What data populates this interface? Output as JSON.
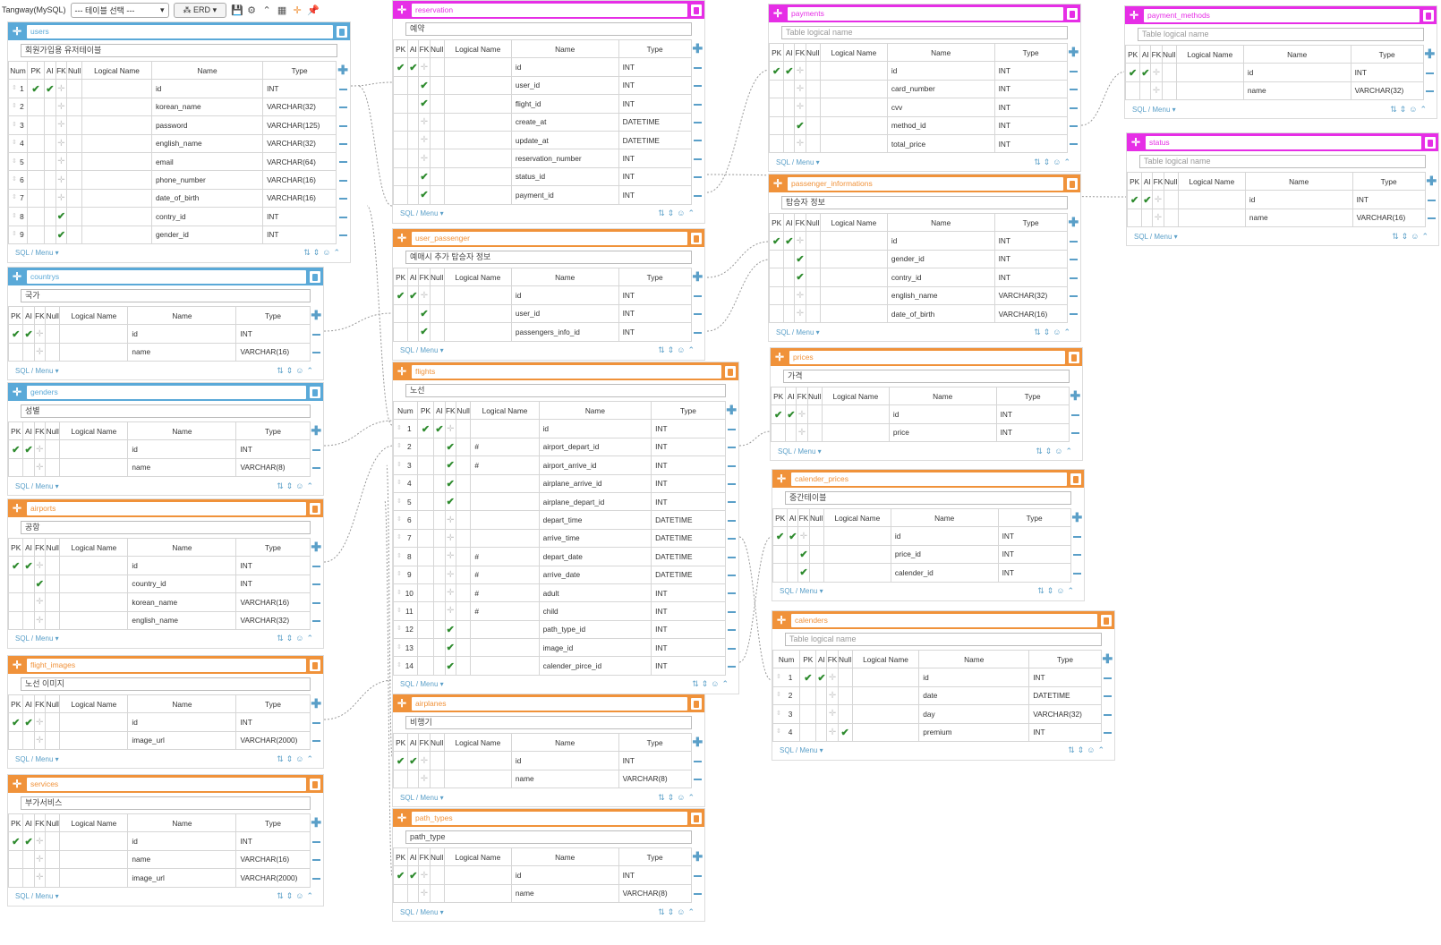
{
  "toolbar": {
    "db_label": "Tangway(MySQL)",
    "table_select": "--- 테이블 선택 ---",
    "erd_label": "ERD",
    "icons": [
      "save-icon",
      "gear-icon",
      "collapse-icon",
      "grid-icon",
      "add-icon",
      "pin-icon"
    ]
  },
  "columns": {
    "num": "Num",
    "pk": "PK",
    "ai": "AI",
    "fk": "FK",
    "null": "Null",
    "logical": "Logical Name",
    "name": "Name",
    "type": "Type"
  },
  "footer": {
    "menu": "SQL / Menu"
  },
  "colors": {
    "blue": "#5aa9d8",
    "orange": "#f0923a",
    "magenta": "#e62ee6",
    "check": "#2e8b2e"
  },
  "tables": [
    {
      "name": "users",
      "color": "blue",
      "logical": "회원가입용 유저테이블",
      "placeholder": false,
      "numbered": true,
      "rows": [
        {
          "num": "1",
          "pk": true,
          "ai": true,
          "fk": false,
          "name": "id",
          "type": "INT"
        },
        {
          "num": "2",
          "name": "korean_name",
          "type": "VARCHAR(32)"
        },
        {
          "num": "3",
          "name": "password",
          "type": "VARCHAR(125)"
        },
        {
          "num": "4",
          "name": "english_name",
          "type": "VARCHAR(32)"
        },
        {
          "num": "5",
          "name": "email",
          "type": "VARCHAR(64)"
        },
        {
          "num": "6",
          "name": "phone_number",
          "type": "VARCHAR(16)"
        },
        {
          "num": "7",
          "name": "date_of_birth",
          "type": "VARCHAR(16)"
        },
        {
          "num": "8",
          "fk": true,
          "name": "contry_id",
          "type": "INT"
        },
        {
          "num": "9",
          "fk": true,
          "name": "gender_id",
          "type": "INT"
        }
      ]
    },
    {
      "name": "countrys",
      "color": "blue",
      "logical": "국가",
      "rows": [
        {
          "pk": true,
          "ai": true,
          "name": "id",
          "type": "INT"
        },
        {
          "name": "name",
          "type": "VARCHAR(16)"
        }
      ]
    },
    {
      "name": "genders",
      "color": "blue",
      "logical": "성별",
      "rows": [
        {
          "pk": true,
          "ai": true,
          "name": "id",
          "type": "INT"
        },
        {
          "name": "name",
          "type": "VARCHAR(8)"
        }
      ]
    },
    {
      "name": "airports",
      "color": "orange",
      "logical": "공항",
      "rows": [
        {
          "pk": true,
          "ai": true,
          "name": "id",
          "type": "INT"
        },
        {
          "fk": true,
          "name": "country_id",
          "type": "INT"
        },
        {
          "name": "korean_name",
          "type": "VARCHAR(16)"
        },
        {
          "name": "english_name",
          "type": "VARCHAR(32)"
        }
      ]
    },
    {
      "name": "flight_images",
      "color": "orange",
      "logical": "노선 이미지",
      "rows": [
        {
          "pk": true,
          "ai": true,
          "name": "id",
          "type": "INT"
        },
        {
          "name": "image_url",
          "type": "VARCHAR(2000)"
        }
      ]
    },
    {
      "name": "services",
      "color": "orange",
      "logical": "부가서비스",
      "rows": [
        {
          "pk": true,
          "ai": true,
          "name": "id",
          "type": "INT"
        },
        {
          "name": "name",
          "type": "VARCHAR(16)"
        },
        {
          "name": "image_url",
          "type": "VARCHAR(2000)"
        }
      ]
    },
    {
      "name": "reservation",
      "color": "magenta",
      "logical": "예약",
      "rows": [
        {
          "pk": true,
          "ai": true,
          "name": "id",
          "type": "INT"
        },
        {
          "fk": true,
          "name": "user_id",
          "type": "INT"
        },
        {
          "fk": true,
          "name": "flight_id",
          "type": "INT"
        },
        {
          "name": "create_at",
          "type": "DATETIME"
        },
        {
          "name": "update_at",
          "type": "DATETIME"
        },
        {
          "name": "reservation_number",
          "type": "INT"
        },
        {
          "fk": true,
          "name": "status_id",
          "type": "INT"
        },
        {
          "fk": true,
          "name": "payment_id",
          "type": "INT"
        }
      ]
    },
    {
      "name": "user_passenger",
      "color": "orange",
      "logical": "예매시 추가 탑승자 정보",
      "rows": [
        {
          "pk": true,
          "ai": true,
          "name": "id",
          "type": "INT"
        },
        {
          "fk": true,
          "name": "user_id",
          "type": "INT"
        },
        {
          "fk": true,
          "name": "passengers_info_id",
          "type": "INT"
        }
      ]
    },
    {
      "name": "flights",
      "color": "orange",
      "logical": "노선",
      "numbered": true,
      "rows": [
        {
          "num": "1",
          "pk": true,
          "ai": true,
          "name": "id",
          "type": "INT"
        },
        {
          "num": "2",
          "fk": true,
          "lname": "#",
          "name": "airport_depart_id",
          "type": "INT"
        },
        {
          "num": "3",
          "fk": true,
          "lname": "#",
          "name": "airport_arrive_id",
          "type": "INT"
        },
        {
          "num": "4",
          "fk": true,
          "name": "airplane_arrive_id",
          "type": "INT"
        },
        {
          "num": "5",
          "fk": true,
          "name": "airplane_depart_id",
          "type": "INT"
        },
        {
          "num": "6",
          "name": "depart_time",
          "type": "DATETIME"
        },
        {
          "num": "7",
          "name": "arrive_time",
          "type": "DATETIME"
        },
        {
          "num": "8",
          "lname": "#",
          "name": "depart_date",
          "type": "DATETIME"
        },
        {
          "num": "9",
          "lname": "#",
          "name": "arrive_date",
          "type": "DATETIME"
        },
        {
          "num": "10",
          "lname": "#",
          "name": "adult",
          "type": "INT"
        },
        {
          "num": "11",
          "lname": "#",
          "name": "child",
          "type": "INT"
        },
        {
          "num": "12",
          "fk": true,
          "name": "path_type_id",
          "type": "INT"
        },
        {
          "num": "13",
          "fk": true,
          "name": "image_id",
          "type": "INT"
        },
        {
          "num": "14",
          "fk": true,
          "name": "calender_pirce_id",
          "type": "INT"
        }
      ]
    },
    {
      "name": "airplanes",
      "color": "orange",
      "logical": "비행기",
      "rows": [
        {
          "pk": true,
          "ai": true,
          "name": "id",
          "type": "INT"
        },
        {
          "name": "name",
          "type": "VARCHAR(8)"
        }
      ]
    },
    {
      "name": "path_types",
      "color": "orange",
      "logical": "path_type",
      "rows": [
        {
          "pk": true,
          "ai": true,
          "name": "id",
          "type": "INT"
        },
        {
          "name": "name",
          "type": "VARCHAR(8)"
        }
      ]
    },
    {
      "name": "payments",
      "color": "magenta",
      "logical": "Table logical name",
      "placeholder": true,
      "rows": [
        {
          "pk": true,
          "ai": true,
          "name": "id",
          "type": "INT"
        },
        {
          "name": "card_number",
          "type": "INT"
        },
        {
          "name": "cvv",
          "type": "INT"
        },
        {
          "fk": true,
          "name": "method_id",
          "type": "INT"
        },
        {
          "name": "total_price",
          "type": "INT"
        }
      ]
    },
    {
      "name": "passenger_informations",
      "color": "orange",
      "logical": "탑승자 정보",
      "rows": [
        {
          "pk": true,
          "ai": true,
          "name": "id",
          "type": "INT"
        },
        {
          "fk": true,
          "name": "gender_id",
          "type": "INT"
        },
        {
          "fk": true,
          "name": "contry_id",
          "type": "INT"
        },
        {
          "name": "english_name",
          "type": "VARCHAR(32)"
        },
        {
          "name": "date_of_birth",
          "type": "VARCHAR(16)"
        }
      ]
    },
    {
      "name": "prices",
      "color": "orange",
      "logical": "가격",
      "rows": [
        {
          "pk": true,
          "ai": true,
          "name": "id",
          "type": "INT"
        },
        {
          "name": "price",
          "type": "INT"
        }
      ]
    },
    {
      "name": "calender_prices",
      "color": "orange",
      "logical": "중간테이블",
      "rows": [
        {
          "pk": true,
          "ai": true,
          "name": "id",
          "type": "INT"
        },
        {
          "fk": true,
          "name": "price_id",
          "type": "INT"
        },
        {
          "fk": true,
          "name": "calender_id",
          "type": "INT"
        }
      ]
    },
    {
      "name": "calenders",
      "color": "orange",
      "logical": "Table logical name",
      "placeholder": true,
      "numbered": true,
      "rows": [
        {
          "num": "1",
          "pk": true,
          "ai": true,
          "name": "id",
          "type": "INT"
        },
        {
          "num": "2",
          "name": "date",
          "type": "DATETIME"
        },
        {
          "num": "3",
          "name": "day",
          "type": "VARCHAR(32)"
        },
        {
          "num": "4",
          "null": true,
          "name": "premium",
          "type": "INT"
        }
      ]
    },
    {
      "name": "payment_methods",
      "color": "magenta",
      "logical": "Table logical name",
      "placeholder": true,
      "rows": [
        {
          "pk": true,
          "ai": true,
          "name": "id",
          "type": "INT"
        },
        {
          "name": "name",
          "type": "VARCHAR(32)"
        }
      ]
    },
    {
      "name": "status",
      "color": "magenta",
      "logical": "Table logical name",
      "placeholder": true,
      "rows": [
        {
          "pk": true,
          "ai": true,
          "name": "id",
          "type": "INT"
        },
        {
          "name": "name",
          "type": "VARCHAR(16)"
        }
      ]
    }
  ]
}
